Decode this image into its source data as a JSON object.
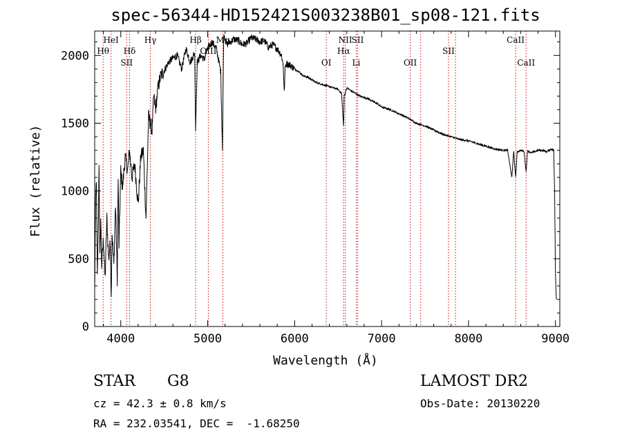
{
  "chart_data": {
    "type": "line",
    "title": "spec-56344-HD152421S003238B01_sp08-121.fits",
    "xlabel": "Wavelength (Å)",
    "ylabel": "Flux (relative)",
    "xlim": [
      3700,
      9050
    ],
    "ylim": [
      0,
      2180
    ],
    "x_ticks": [
      4000,
      5000,
      6000,
      7000,
      8000,
      9000
    ],
    "y_ticks": [
      0,
      500,
      1000,
      1500,
      2000
    ],
    "x_tick_labels": [
      "4000",
      "5000",
      "6000",
      "7000",
      "8000",
      "9000"
    ],
    "y_tick_labels": [
      "0",
      "500",
      "1000",
      "1500",
      "2000"
    ],
    "grid": false,
    "series": [
      {
        "x": [
          3700,
          3710,
          3720,
          3730,
          3740,
          3750,
          3760,
          3770,
          3780,
          3800,
          3820,
          3840,
          3860,
          3880,
          3890,
          3900,
          3920,
          3940,
          3960,
          3970,
          3980,
          4000,
          4020,
          4050,
          4080,
          4100,
          4130,
          4160,
          4200,
          4230,
          4260,
          4290,
          4320,
          4340,
          4360,
          4380,
          4400,
          4430,
          4460,
          4500,
          4550,
          4600,
          4650,
          4700,
          4750,
          4800,
          4850,
          4861,
          4880,
          4920,
          4960,
          5000,
          5050,
          5100,
          5150,
          5170,
          5183,
          5190,
          5220,
          5260,
          5300,
          5350,
          5400,
          5450,
          5500,
          5550,
          5600,
          5650,
          5700,
          5750,
          5800,
          5850,
          5870,
          5880,
          5890,
          5900,
          5950,
          6000,
          6050,
          6100,
          6150,
          6200,
          6250,
          6300,
          6350,
          6400,
          6450,
          6500,
          6540,
          6560,
          6563,
          6570,
          6600,
          6650,
          6700,
          6750,
          6800,
          6850,
          6900,
          6950,
          7000,
          7100,
          7200,
          7300,
          7400,
          7500,
          7600,
          7700,
          7800,
          7900,
          8000,
          8100,
          8200,
          8300,
          8400,
          8450,
          8498,
          8520,
          8542,
          8560,
          8600,
          8640,
          8662,
          8680,
          8720,
          8760,
          8800,
          8850,
          8900,
          8950,
          8980,
          8990,
          9000,
          9010
        ],
        "y": [
          250,
          900,
          1100,
          350,
          650,
          1220,
          500,
          800,
          450,
          650,
          350,
          800,
          500,
          620,
          200,
          700,
          450,
          900,
          350,
          1100,
          600,
          1150,
          1020,
          1250,
          1150,
          1300,
          1100,
          1200,
          900,
          1250,
          1300,
          800,
          1550,
          1500,
          1450,
          1700,
          1600,
          1770,
          1850,
          1890,
          1950,
          1980,
          2000,
          1900,
          2050,
          1950,
          2020,
          1450,
          1950,
          2000,
          1970,
          2050,
          2100,
          2050,
          1880,
          1300,
          2120,
          2150,
          2080,
          2100,
          2120,
          2110,
          2080,
          2090,
          2130,
          2120,
          2100,
          2110,
          2060,
          2080,
          2050,
          2000,
          1920,
          1720,
          1900,
          1940,
          1930,
          1900,
          1880,
          1850,
          1840,
          1820,
          1800,
          1790,
          1780,
          1770,
          1760,
          1750,
          1720,
          1500,
          1480,
          1700,
          1760,
          1740,
          1720,
          1700,
          1690,
          1680,
          1660,
          1645,
          1620,
          1600,
          1570,
          1540,
          1500,
          1480,
          1450,
          1420,
          1400,
          1380,
          1370,
          1350,
          1330,
          1310,
          1300,
          1300,
          1100,
          1290,
          1100,
          1290,
          1300,
          1290,
          1140,
          1300,
          1280,
          1290,
          1300,
          1300,
          1290,
          1310,
          1300,
          1000,
          400,
          200
        ]
      }
    ],
    "lines": [
      {
        "label": "HeI",
        "x": 3888,
        "row": 1
      },
      {
        "label": "Hθ",
        "x": 3797,
        "row": 2
      },
      {
        "label": "Hδ",
        "x": 4102,
        "row": 2
      },
      {
        "label": "SII",
        "x": 4068,
        "row": 3
      },
      {
        "label": "Hγ",
        "x": 4340,
        "row": 1
      },
      {
        "label": "Hβ",
        "x": 4861,
        "row": 0
      },
      {
        "label": "OIII",
        "x": 5007,
        "row": 2
      },
      {
        "label": "Mg",
        "x": 5175,
        "row": 1
      },
      {
        "label": "NII",
        "x": 6583,
        "row": 1
      },
      {
        "label": "Hα",
        "x": 6563,
        "row": 2
      },
      {
        "label": "OI",
        "x": 6364,
        "row": 3
      },
      {
        "label": "Li",
        "x": 6708,
        "row": 3
      },
      {
        "label": "OII",
        "x": 7330,
        "row": 3
      },
      {
        "label": "SII",
        "x": 6725,
        "row": 0
      },
      {
        "label": "SII",
        "x": 7770,
        "row": 2
      },
      {
        "label": "CaII",
        "x": 8542,
        "row": 1
      },
      {
        "label": "CaII",
        "x": 8662,
        "row": 3
      },
      {
        "label": "",
        "x": 7450,
        "row": 0
      },
      {
        "label": "",
        "x": 7850,
        "row": 0
      }
    ],
    "line_color": "#cc0000"
  },
  "info": {
    "class_label": "STAR",
    "subclass": "G8",
    "survey": "LAMOST DR2",
    "cz": "cz = 42.3 ± 0.8 km/s",
    "obs_date": "Obs-Date: 20130220",
    "coords": "RA = 232.03541, DEC =  -1.68250"
  }
}
